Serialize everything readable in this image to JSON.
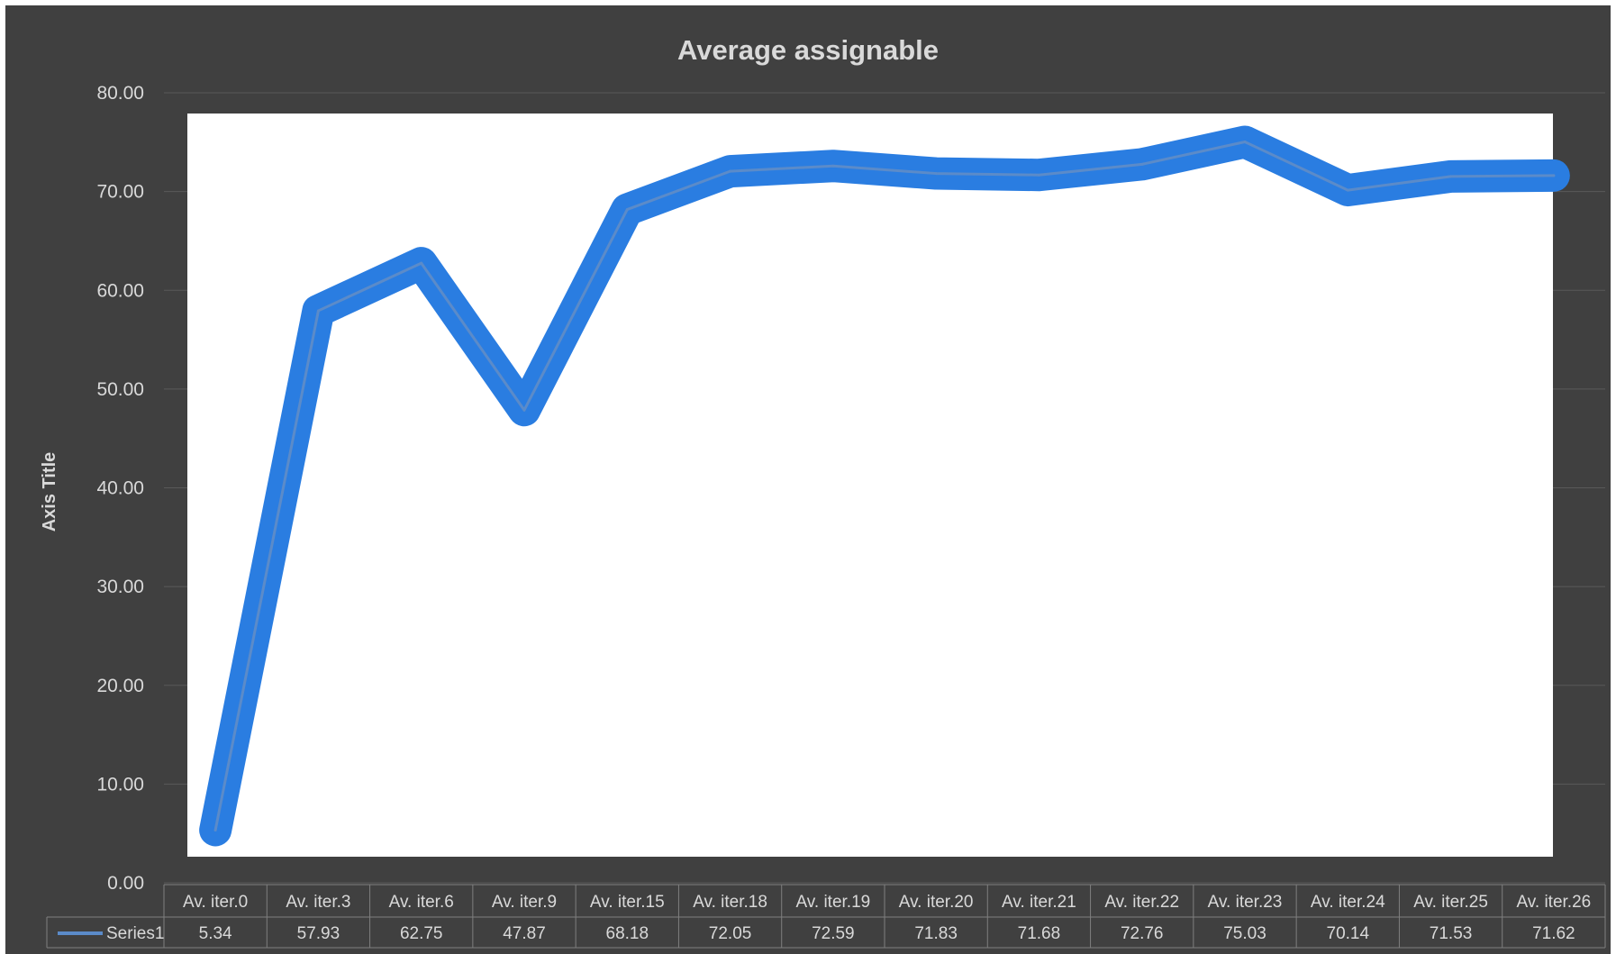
{
  "chart_data": {
    "type": "line",
    "title": "Average assignable",
    "ylabel": "Axis Title",
    "xlabel": "",
    "ylim": [
      0,
      80
    ],
    "ytick_step": 10,
    "ytick_labels": [
      "0.00",
      "10.00",
      "20.00",
      "30.00",
      "40.00",
      "50.00",
      "60.00",
      "70.00",
      "80.00"
    ],
    "categories": [
      "Av. iter.0",
      "Av. iter.3",
      "Av. iter.6",
      "Av. iter.9",
      "Av. iter.15",
      "Av. iter.18",
      "Av. iter.19",
      "Av. iter.20",
      "Av. iter.21",
      "Av. iter.22",
      "Av. iter.23",
      "Av. iter.24",
      "Av. iter.25",
      "Av. iter.26"
    ],
    "series": [
      {
        "name": "Series1",
        "values": [
          5.34,
          57.93,
          62.75,
          47.87,
          68.18,
          72.05,
          72.59,
          71.83,
          71.68,
          72.76,
          75.03,
          70.14,
          71.53,
          71.62
        ],
        "value_labels": [
          "5.34",
          "57.93",
          "62.75",
          "47.87",
          "68.18",
          "72.05",
          "72.59",
          "71.83",
          "71.68",
          "72.76",
          "75.03",
          "70.14",
          "71.53",
          "71.62"
        ]
      }
    ],
    "data_table": true,
    "grid": true,
    "colors": {
      "background": "#404040",
      "plot_fill": "#ffffff",
      "series_band": "#2a7de1",
      "series_line": "#5b8bc9",
      "text": "#d9d9d9",
      "gridline": "#595959",
      "table_border": "#7f7f7f"
    }
  }
}
